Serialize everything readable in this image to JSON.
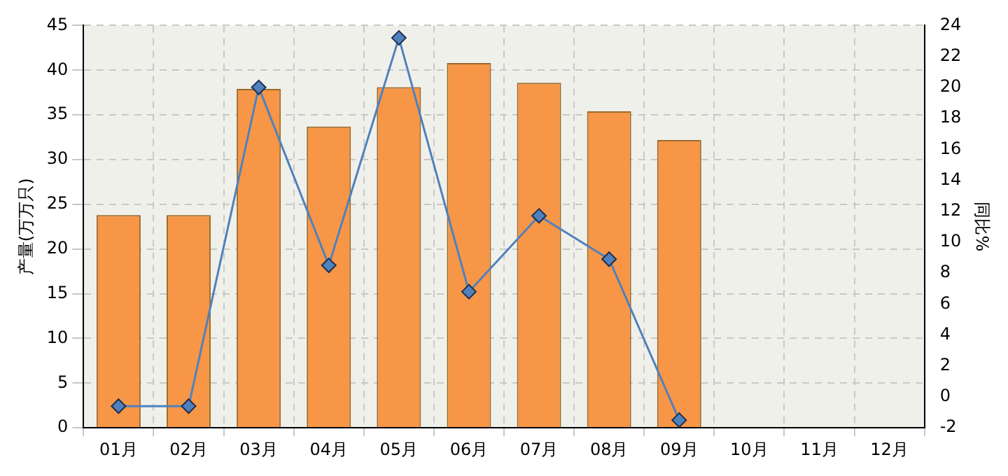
{
  "chart_data": {
    "type": "bar",
    "categories": [
      "01月",
      "02月",
      "03月",
      "04月",
      "05月",
      "06月",
      "07月",
      "08月",
      "09月",
      "10月",
      "11月",
      "12月"
    ],
    "ylabel": "产量(万万只)",
    "y2label": "同比%",
    "ylim": [
      0,
      45
    ],
    "yticks": [
      0,
      5,
      10,
      15,
      20,
      25,
      30,
      35,
      40,
      45
    ],
    "y2lim": [
      -2,
      24
    ],
    "y2ticks": [
      -2,
      0,
      2,
      4,
      6,
      8,
      10,
      12,
      14,
      16,
      18,
      20,
      22,
      24
    ],
    "grid": true,
    "legend": false,
    "marker": "diamond",
    "series": [
      {
        "color": "#f79646",
        "values": [
          23.8,
          23.8,
          37.9,
          33.7,
          38.1,
          40.8,
          38.6,
          35.4,
          32.2,
          null,
          null,
          null
        ]
      },
      {
        "type": "line",
        "axis": "y2",
        "color": "#4f81bd",
        "values": [
          -0.6,
          -0.6,
          20.0,
          8.5,
          23.2,
          6.8,
          11.7,
          8.9,
          -1.5,
          null,
          null,
          null
        ]
      }
    ]
  }
}
